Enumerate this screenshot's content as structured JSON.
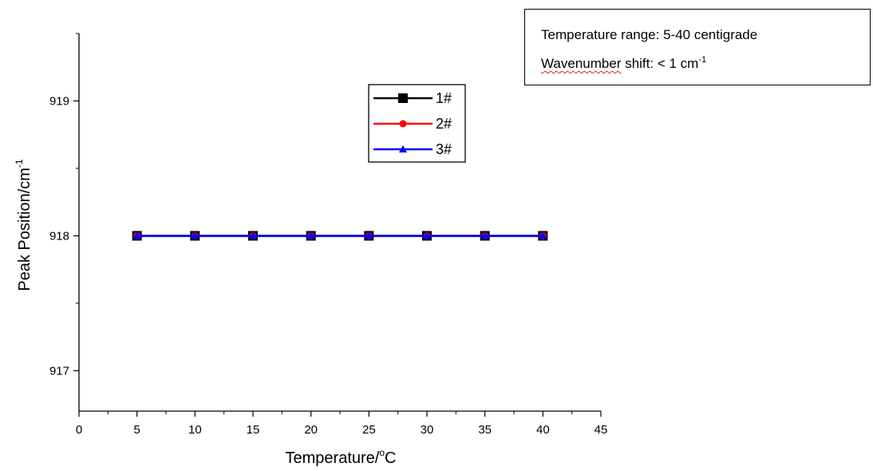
{
  "chart_data": {
    "type": "line",
    "xlabel": "Temperature/°C",
    "ylabel": "Peak Position/cm-1",
    "xlim": [
      0,
      45
    ],
    "ylim": [
      916.7,
      919.5
    ],
    "x_ticks": [
      0,
      5,
      10,
      15,
      20,
      25,
      30,
      35,
      40,
      45
    ],
    "y_ticks": [
      917,
      918,
      919
    ],
    "grid": false,
    "legend_position": "top-center",
    "x": [
      5,
      10,
      15,
      20,
      25,
      30,
      35,
      40
    ],
    "series": [
      {
        "name": "1#",
        "values": [
          918,
          918,
          918,
          918,
          918,
          918,
          918,
          918
        ],
        "color": "#000000",
        "marker": "square"
      },
      {
        "name": "2#",
        "values": [
          918,
          918,
          918,
          918,
          918,
          918,
          918,
          918
        ],
        "color": "#ff0000",
        "marker": "circle"
      },
      {
        "name": "3#",
        "values": [
          918,
          918,
          918,
          918,
          918,
          918,
          918,
          918
        ],
        "color": "#0000ff",
        "marker": "triangle"
      }
    ]
  },
  "axis_titles": {
    "x_main": "Temperature/",
    "x_sup": "o",
    "x_unit": "C",
    "y_main": "Peak Position/cm",
    "y_sup": "-1"
  },
  "annotation": {
    "line1": "Temperature range: 5-40 centigrade",
    "line2_word": "Wavenumber",
    "line2_rest": " shift: < 1 cm",
    "line2_sup": "-1"
  }
}
